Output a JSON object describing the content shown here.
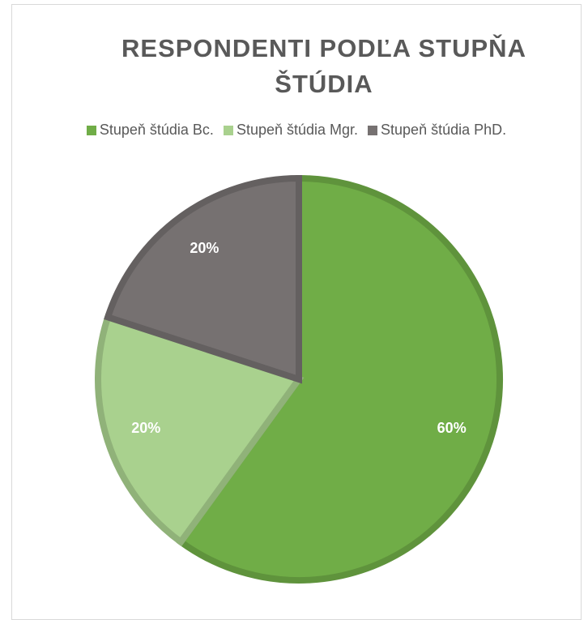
{
  "chart_data": {
    "type": "pie",
    "title": "RESPONDENTI PODĽA STUPŇA ŠTÚDIA",
    "categories": [
      "Stupeň štúdia Bc.",
      "Stupeň štúdia Mgr.",
      "Stupeň štúdia PhD."
    ],
    "values": [
      60,
      20,
      20
    ],
    "value_labels": [
      "60%",
      "20%",
      "20%"
    ],
    "colors": [
      "#70ad47",
      "#a9d18e",
      "#767171"
    ],
    "legend": "top"
  }
}
